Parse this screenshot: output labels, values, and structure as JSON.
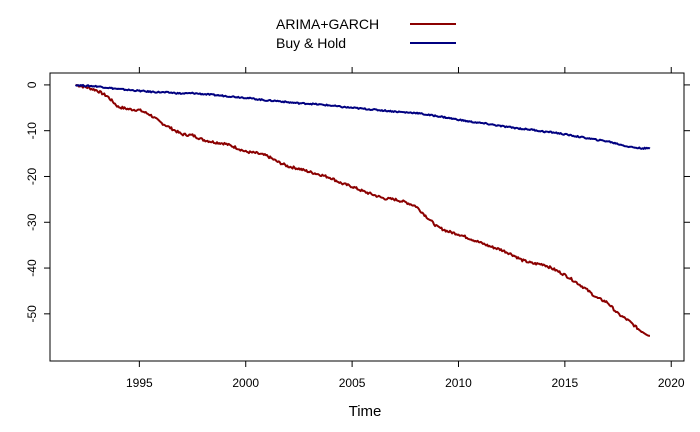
{
  "chart_data": {
    "type": "line",
    "title": "",
    "xlabel": "Time",
    "ylabel": "",
    "xlim": [
      1990.8,
      2020.6
    ],
    "ylim": [
      -60.3,
      2.6
    ],
    "x_ticks": [
      1995,
      2000,
      2005,
      2010,
      2015,
      2020
    ],
    "y_ticks": [
      0,
      -10,
      -20,
      -30,
      -40,
      -50
    ],
    "grid": false,
    "legend_position": "top-center",
    "series": [
      {
        "name": "ARIMA+GARCH",
        "color": "#8B0000",
        "x": [
          1992.0,
          1992.5,
          1993.0,
          1993.5,
          1994.0,
          1994.5,
          1995.0,
          1995.5,
          1996.0,
          1996.5,
          1997.0,
          1997.5,
          1998.0,
          1998.5,
          1999.0,
          1999.5,
          2000.0,
          2000.5,
          2001.0,
          2001.5,
          2002.0,
          2002.5,
          2003.0,
          2003.5,
          2004.0,
          2004.5,
          2005.0,
          2005.5,
          2006.0,
          2006.5,
          2007.0,
          2007.5,
          2008.0,
          2008.5,
          2009.0,
          2009.5,
          2010.0,
          2010.5,
          2011.0,
          2011.5,
          2012.0,
          2012.5,
          2013.0,
          2013.5,
          2014.0,
          2014.5,
          2015.0,
          2015.5,
          2016.0,
          2016.5,
          2017.0,
          2017.5,
          2018.0,
          2018.5,
          2019.0
        ],
        "y": [
          0.0,
          -0.5,
          -1.2,
          -2.5,
          -4.8,
          -5.3,
          -5.5,
          -6.5,
          -8.2,
          -9.5,
          -10.8,
          -11.0,
          -12.0,
          -12.5,
          -12.8,
          -13.6,
          -14.6,
          -14.9,
          -15.5,
          -16.8,
          -17.8,
          -18.3,
          -19.0,
          -19.6,
          -20.3,
          -21.5,
          -22.2,
          -23.2,
          -24.0,
          -24.8,
          -25.0,
          -25.6,
          -26.5,
          -28.8,
          -31.0,
          -32.0,
          -32.6,
          -33.5,
          -34.4,
          -35.3,
          -36.0,
          -37.0,
          -38.3,
          -39.0,
          -39.2,
          -40.3,
          -41.5,
          -43.0,
          -44.6,
          -46.5,
          -47.5,
          -50.0,
          -51.5,
          -53.5,
          -54.8
        ]
      },
      {
        "name": "Buy & Hold",
        "color": "#000080",
        "x": [
          1992.0,
          1992.5,
          1993.0,
          1993.5,
          1994.0,
          1994.5,
          1995.0,
          1995.5,
          1996.0,
          1996.5,
          1997.0,
          1997.5,
          1998.0,
          1998.5,
          1999.0,
          1999.5,
          2000.0,
          2000.5,
          2001.0,
          2001.5,
          2002.0,
          2002.5,
          2003.0,
          2003.5,
          2004.0,
          2004.5,
          2005.0,
          2005.5,
          2006.0,
          2006.5,
          2007.0,
          2007.5,
          2008.0,
          2008.5,
          2009.0,
          2009.5,
          2010.0,
          2010.5,
          2011.0,
          2011.5,
          2012.0,
          2012.5,
          2013.0,
          2013.5,
          2014.0,
          2014.5,
          2015.0,
          2015.5,
          2016.0,
          2016.5,
          2017.0,
          2017.5,
          2018.0,
          2018.5,
          2019.0
        ],
        "y": [
          0.0,
          -0.2,
          -0.3,
          -0.6,
          -0.9,
          -1.1,
          -1.3,
          -1.5,
          -1.6,
          -1.7,
          -1.9,
          -1.8,
          -2.0,
          -2.2,
          -2.4,
          -2.6,
          -2.8,
          -3.1,
          -3.4,
          -3.5,
          -3.8,
          -4.0,
          -4.1,
          -4.3,
          -4.5,
          -4.8,
          -5.0,
          -5.2,
          -5.4,
          -5.6,
          -5.8,
          -6.0,
          -6.1,
          -6.5,
          -6.8,
          -7.2,
          -7.6,
          -8.0,
          -8.3,
          -8.6,
          -9.0,
          -9.3,
          -9.6,
          -9.8,
          -10.2,
          -10.4,
          -10.8,
          -11.2,
          -11.6,
          -12.0,
          -12.3,
          -12.9,
          -13.5,
          -13.8,
          -13.9
        ]
      }
    ]
  }
}
